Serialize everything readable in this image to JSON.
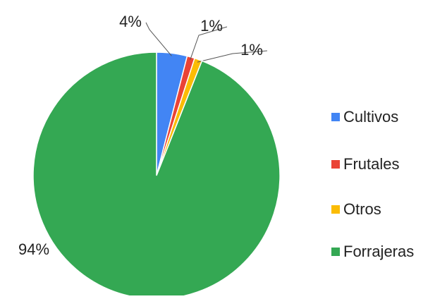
{
  "chart_data": {
    "type": "pie",
    "categories": [
      "Cultivos",
      "Frutales",
      "Otros",
      "Forrajeras"
    ],
    "values": [
      4,
      1,
      1,
      94
    ],
    "value_labels": [
      "4%",
      "1%",
      "1%",
      "94%"
    ],
    "colors": [
      "#4285f4",
      "#ea4335",
      "#fbbc04",
      "#34a853"
    ],
    "legend": "right"
  }
}
